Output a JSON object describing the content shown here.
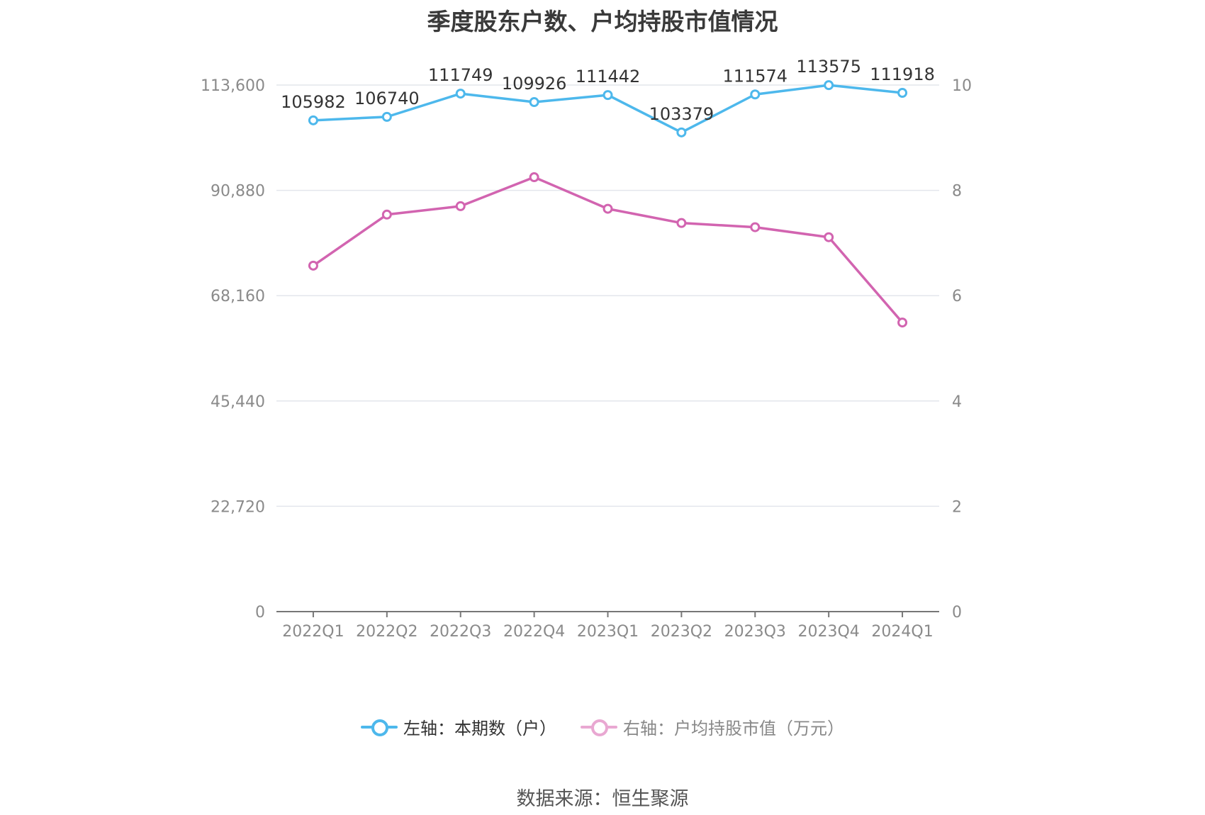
{
  "chart_data": {
    "type": "line",
    "title": "季度股东户数、户均持股市值情况",
    "categories": [
      "2022Q1",
      "2022Q2",
      "2022Q3",
      "2022Q4",
      "2023Q1",
      "2023Q2",
      "2023Q3",
      "2023Q4",
      "2024Q1"
    ],
    "left_axis": {
      "min": 0,
      "max": 113600,
      "ticks": [
        "0",
        "22,720",
        "45,440",
        "68,160",
        "90,880",
        "113,600"
      ]
    },
    "right_axis": {
      "min": 0,
      "max": 10,
      "ticks": [
        "0",
        "2",
        "4",
        "6",
        "8",
        "10"
      ]
    },
    "series": [
      {
        "name": "左轴：本期数（户）",
        "axis": "left",
        "color": "#4db8ec",
        "values": [
          105982,
          106740,
          111749,
          109926,
          111442,
          103379,
          111574,
          113575,
          111918
        ],
        "labels": [
          "105982",
          "106740",
          "111749",
          "109926",
          "111442",
          "103379",
          "111574",
          "113575",
          "111918"
        ]
      },
      {
        "name": "右轴：户均持股市值（万元）",
        "axis": "right",
        "color": "#d264b0",
        "legend_color": "#e9a8d2",
        "values": [
          6.57,
          7.54,
          7.7,
          8.25,
          7.65,
          7.38,
          7.3,
          7.11,
          5.49
        ]
      }
    ],
    "grid": true,
    "legend_position": "bottom"
  },
  "source": "数据来源：恒生聚源"
}
